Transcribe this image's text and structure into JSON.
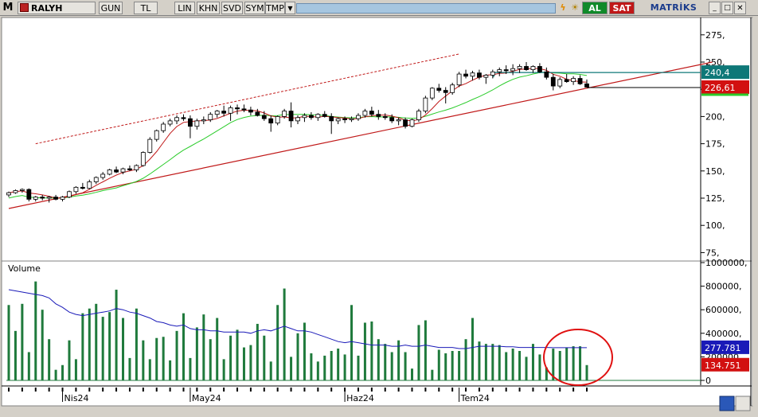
{
  "toolbar": {
    "app_icon": "M",
    "symbol": "RALYH",
    "buttons": [
      "GUN",
      "TL",
      "LIN",
      "KHN",
      "SVD",
      "SYM",
      "TMP"
    ],
    "buy_label": "AL",
    "sell_label": "SAT",
    "brand": "MATRİKS"
  },
  "colors": {
    "up_candle": "#ffffff",
    "down_candle": "#000000",
    "ma_short": "#c01818",
    "ma_long": "#2bcc2b",
    "trend_line": "#c01818",
    "volume_bar": "#1f7a3c",
    "volume_ma": "#1a1ab8",
    "label_teal": "#0e7878",
    "label_red": "#d21010",
    "label_blue": "#1a1ab8",
    "highlight_circle": "#e01010"
  },
  "chart_data": [
    {
      "type": "candlestick",
      "title": "",
      "y_ticks": [
        75,
        100,
        125,
        150,
        175,
        200,
        225,
        250,
        275
      ],
      "y_tick_labels": [
        "75,",
        "100,",
        "125,",
        "150,",
        "175,",
        "200,",
        "225,",
        "250,",
        "275,"
      ],
      "ylim": [
        68,
        288
      ],
      "x_labels": [
        "Nis24",
        "May24",
        "Haz24",
        "Tem24"
      ],
      "price_labels": {
        "high_line": "240,4",
        "last": "226,61"
      },
      "ohlc": [
        [
          128,
          131,
          126,
          130
        ],
        [
          130,
          133,
          129,
          132
        ],
        [
          132,
          134,
          130,
          133
        ],
        [
          133,
          134,
          122,
          124
        ],
        [
          124,
          127,
          122,
          126
        ],
        [
          126,
          128,
          123,
          125
        ],
        [
          125,
          127,
          121,
          126
        ],
        [
          126,
          128,
          123,
          124
        ],
        [
          124,
          127,
          122,
          126
        ],
        [
          126,
          132,
          125,
          131
        ],
        [
          131,
          136,
          129,
          135
        ],
        [
          135,
          139,
          133,
          134
        ],
        [
          134,
          142,
          133,
          140
        ],
        [
          140,
          145,
          138,
          144
        ],
        [
          144,
          149,
          142,
          147
        ],
        [
          147,
          152,
          146,
          151
        ],
        [
          151,
          154,
          148,
          149
        ],
        [
          149,
          153,
          147,
          152
        ],
        [
          152,
          155,
          150,
          151
        ],
        [
          151,
          156,
          149,
          155
        ],
        [
          155,
          168,
          154,
          167
        ],
        [
          167,
          181,
          166,
          179
        ],
        [
          179,
          188,
          177,
          187
        ],
        [
          187,
          195,
          185,
          193
        ],
        [
          193,
          198,
          191,
          196
        ],
        [
          196,
          201,
          193,
          199
        ],
        [
          199,
          202,
          196,
          198
        ],
        [
          198,
          201,
          180,
          191
        ],
        [
          191,
          198,
          188,
          196
        ],
        [
          196,
          200,
          193,
          197
        ],
        [
          197,
          204,
          195,
          202
        ],
        [
          202,
          206,
          199,
          205
        ],
        [
          205,
          210,
          200,
          203
        ],
        [
          203,
          210,
          196,
          208
        ],
        [
          208,
          211,
          202,
          207
        ],
        [
          207,
          211,
          204,
          206
        ],
        [
          206,
          209,
          201,
          204
        ],
        [
          204,
          207,
          200,
          201
        ],
        [
          201,
          205,
          196,
          198
        ],
        [
          198,
          201,
          186,
          194
        ],
        [
          194,
          201,
          192,
          200
        ],
        [
          200,
          207,
          198,
          205
        ],
        [
          205,
          213,
          190,
          196
        ],
        [
          196,
          201,
          193,
          199
        ],
        [
          199,
          203,
          195,
          201
        ],
        [
          201,
          204,
          197,
          199
        ],
        [
          199,
          203,
          196,
          202
        ],
        [
          202,
          205,
          199,
          200
        ],
        [
          200,
          203,
          184,
          196
        ],
        [
          196,
          199,
          193,
          198
        ],
        [
          198,
          200,
          194,
          197
        ],
        [
          197,
          200,
          195,
          198
        ],
        [
          198,
          203,
          196,
          201
        ],
        [
          201,
          207,
          199,
          205
        ],
        [
          205,
          209,
          200,
          202
        ],
        [
          202,
          206,
          197,
          200
        ],
        [
          200,
          203,
          197,
          199
        ],
        [
          199,
          202,
          194,
          196
        ],
        [
          196,
          199,
          192,
          197
        ],
        [
          197,
          199,
          189,
          191
        ],
        [
          191,
          198,
          190,
          197
        ],
        [
          197,
          207,
          195,
          205
        ],
        [
          205,
          219,
          203,
          217
        ],
        [
          217,
          227,
          215,
          226
        ],
        [
          226,
          230,
          222,
          224
        ],
        [
          224,
          227,
          212,
          222
        ],
        [
          222,
          231,
          220,
          229
        ],
        [
          229,
          241,
          227,
          239
        ],
        [
          239,
          243,
          235,
          237
        ],
        [
          237,
          242,
          233,
          240
        ],
        [
          240,
          243,
          234,
          236
        ],
        [
          236,
          239,
          230,
          238
        ],
        [
          238,
          243,
          235,
          241
        ],
        [
          241,
          245,
          237,
          243
        ],
        [
          243,
          247,
          239,
          242
        ],
        [
          242,
          248,
          238,
          244
        ],
        [
          244,
          248,
          240,
          246
        ],
        [
          246,
          250,
          242,
          243
        ],
        [
          243,
          247,
          240,
          246
        ],
        [
          246,
          249,
          240,
          241
        ],
        [
          241,
          245,
          234,
          236
        ],
        [
          236,
          239,
          224,
          228
        ],
        [
          228,
          236,
          226,
          234
        ],
        [
          234,
          239,
          231,
          232
        ],
        [
          232,
          237,
          229,
          235
        ],
        [
          235,
          238,
          229,
          230
        ],
        [
          230,
          234,
          227,
          227
        ]
      ]
    },
    {
      "type": "bar",
      "title": "Volume",
      "y_ticks": [
        0,
        200000,
        400000,
        600000,
        800000,
        1000000
      ],
      "y_tick_labels": [
        "0",
        "200000,",
        "400000,",
        "600000,",
        "800000,",
        "1000000,"
      ],
      "ylim": [
        0,
        1000000
      ],
      "value_labels": {
        "volume_ma": "277.781",
        "last_volume": "134.751"
      },
      "values": [
        640000,
        420000,
        650000,
        240000,
        840000,
        600000,
        350000,
        90000,
        130000,
        340000,
        180000,
        570000,
        610000,
        650000,
        540000,
        580000,
        770000,
        530000,
        190000,
        610000,
        340000,
        180000,
        360000,
        370000,
        170000,
        420000,
        570000,
        190000,
        450000,
        560000,
        350000,
        530000,
        180000,
        380000,
        430000,
        280000,
        300000,
        480000,
        380000,
        160000,
        640000,
        780000,
        200000,
        400000,
        490000,
        230000,
        160000,
        210000,
        250000,
        270000,
        220000,
        640000,
        210000,
        490000,
        500000,
        350000,
        310000,
        240000,
        340000,
        240000,
        100000,
        470000,
        510000,
        90000,
        260000,
        230000,
        250000,
        250000,
        350000,
        530000,
        330000,
        310000,
        310000,
        300000,
        240000,
        270000,
        250000,
        200000,
        310000,
        220000,
        110000,
        270000,
        250000,
        280000,
        290000,
        290000,
        130000
      ],
      "ma_values": [
        770000,
        760000,
        750000,
        740000,
        730000,
        720000,
        700000,
        650000,
        620000,
        580000,
        560000,
        550000,
        560000,
        570000,
        580000,
        590000,
        610000,
        600000,
        580000,
        570000,
        550000,
        530000,
        500000,
        490000,
        470000,
        460000,
        470000,
        440000,
        430000,
        430000,
        420000,
        420000,
        410000,
        410000,
        410000,
        410000,
        400000,
        420000,
        430000,
        420000,
        440000,
        460000,
        440000,
        420000,
        420000,
        410000,
        390000,
        370000,
        350000,
        330000,
        320000,
        330000,
        320000,
        310000,
        300000,
        300000,
        300000,
        290000,
        290000,
        300000,
        290000,
        290000,
        300000,
        290000,
        280000,
        280000,
        280000,
        270000,
        270000,
        280000,
        290000,
        290000,
        290000,
        290000,
        285000,
        285000,
        280000,
        280000,
        280000,
        280000,
        280000,
        278000,
        278000,
        278000,
        278000,
        278000,
        277781
      ]
    }
  ]
}
